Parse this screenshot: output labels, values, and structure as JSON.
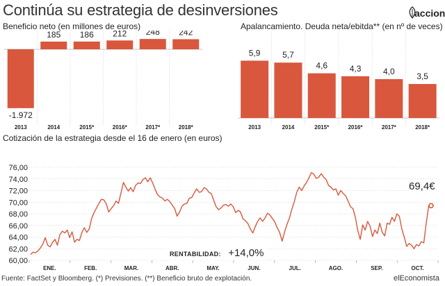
{
  "header": {
    "title": "Continúa su estrategia de desinversiones",
    "logo_text": "acciona"
  },
  "panel1": {
    "subtitle": "Beneficio neto (en millones de euros)"
  },
  "panel2": {
    "subtitle": "Apalancamiento. Deuda neta/ebitda** (en nº de veces)"
  },
  "panel3": {
    "subtitle": "Cotización de la estrategia desde el 16 de enero (en euros)",
    "rentabilidad_label": "RENTABILIDAD:",
    "rentabilidad_value": "+14,0%",
    "last_price_label": "69,4€"
  },
  "footer": {
    "source": "Fuente: FactSet y Bloomberg. (*) Previsiones. (**) Beneficio bruto de explotación.",
    "brand": "elEconomista"
  },
  "colors": {
    "bar": "#d9573d",
    "line": "#d9573d",
    "axis": "#888888",
    "grid": "#bbbbbb"
  },
  "chart_data": [
    {
      "type": "bar",
      "categories": [
        "2013",
        "2014",
        "2015*",
        "2016*",
        "2017*",
        "2018*"
      ],
      "values": [
        -1972,
        185,
        186,
        212,
        248,
        242
      ],
      "value_labels": [
        "-1.972",
        "185",
        "186",
        "212",
        "248",
        "242"
      ],
      "title": "Beneficio neto (en millones de euros)"
    },
    {
      "type": "bar",
      "categories": [
        "2013",
        "2014",
        "2015*",
        "2016*",
        "2017*",
        "2018*"
      ],
      "values": [
        5.9,
        5.7,
        4.6,
        4.3,
        4.0,
        3.5
      ],
      "value_labels": [
        "5,9",
        "5,7",
        "4,6",
        "4,3",
        "4,0",
        "3,5"
      ],
      "title": "Apalancamiento. Deuda neta/ebitda** (en nº de veces)"
    },
    {
      "type": "line",
      "title": "Cotización de la estrategia desde el 16 de enero (en euros)",
      "ylim": [
        60,
        76
      ],
      "yticks": [
        "60,00",
        "62,00",
        "64,00",
        "66,00",
        "68,00",
        "70,00",
        "72,00",
        "74,00",
        "76,00"
      ],
      "month_labels": [
        "ENE.",
        "FEB.",
        "MAR.",
        "ABR.",
        "MAY.",
        "JUN.",
        "JUL.",
        "AGO.",
        "SEP.",
        "OCT."
      ],
      "grid": true,
      "series": [
        {
          "values": [
            61.0,
            61.4,
            61.3,
            61.6,
            62.1,
            62.8,
            63.9,
            62.6,
            62.3,
            63.1,
            63.6,
            62.6,
            64.4,
            65.0,
            64.7,
            65.2,
            63.9,
            64.9,
            63.1,
            63.6,
            63.4,
            64.8,
            65.6,
            64.8,
            65.4,
            67.2,
            68.2,
            69.0,
            69.8,
            70.5,
            70.4,
            69.7,
            68.3,
            68.9,
            69.4,
            70.2,
            69.8,
            71.6,
            73.4,
            72.6,
            71.9,
            72.5,
            71.8,
            72.9,
            73.3,
            73.2,
            73.9,
            74.2,
            73.5,
            74.2,
            73.3,
            72.2,
            71.3,
            70.9,
            70.7,
            70.2,
            70.5,
            70.1,
            69.5,
            68.9,
            67.6,
            68.3,
            69.3,
            69.7,
            69.8,
            70.7,
            70.8,
            71.6,
            72.3,
            71.7,
            71.8,
            72.5,
            72.3,
            71.7,
            71.5,
            70.3,
            69.2,
            68.7,
            69.0,
            69.5,
            69.6,
            69.3,
            69.7,
            69.2,
            68.2,
            68.6,
            68.3,
            67.1,
            66.8,
            66.3,
            65.4,
            64.7,
            65.8,
            66.7,
            67.3,
            66.7,
            67.3,
            68.1,
            67.8,
            67.2,
            66.6,
            65.6,
            64.8,
            63.3,
            64.9,
            66.2,
            67.3,
            68.8,
            70.1,
            71.7,
            72.6,
            72.0,
            72.8,
            73.4,
            74.2,
            75.1,
            74.8,
            74.1,
            74.3,
            74.9,
            74.3,
            73.9,
            72.9,
            72.6,
            72.1,
            72.3,
            71.2,
            72.0,
            71.5,
            71.1,
            70.2,
            69.2,
            68.9,
            67.4,
            65.1,
            63.6,
            66.1,
            65.2,
            66.7,
            65.9,
            64.1,
            65.2,
            64.6,
            66.4,
            64.8,
            64.2,
            66.4,
            66.2,
            67.4,
            66.7,
            68.0,
            67.6,
            65.4,
            64.0,
            62.4,
            62.9,
            62.6,
            62.0,
            62.7,
            62.5,
            63.2,
            63.0,
            66.4,
            69.3,
            69.4
          ]
        }
      ]
    }
  ]
}
